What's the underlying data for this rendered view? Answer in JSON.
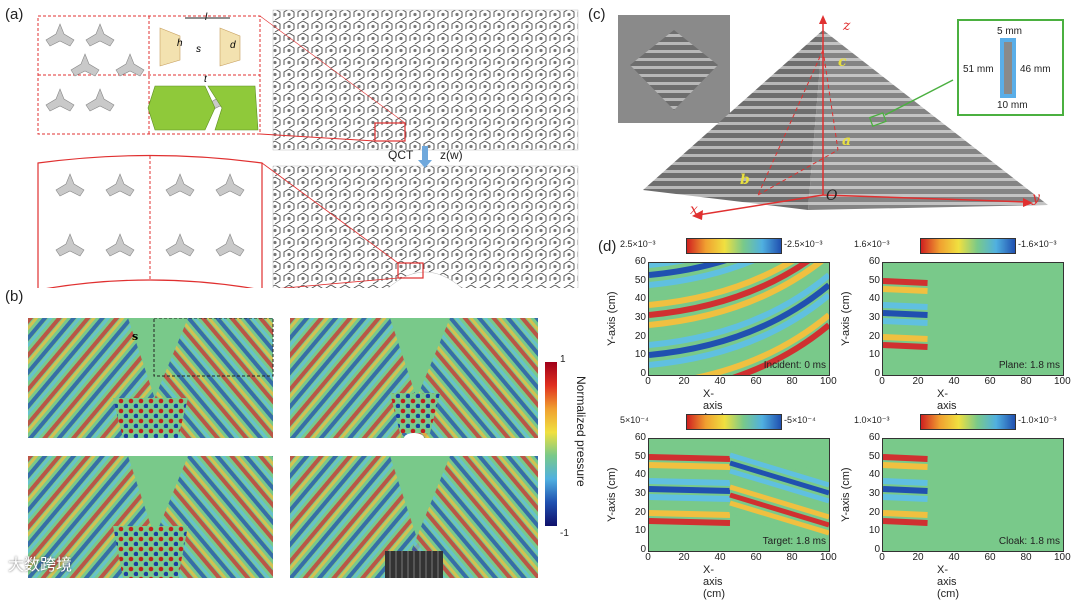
{
  "labels": {
    "a": "(a)",
    "b": "(b)",
    "c": "(c)",
    "d": "(d)"
  },
  "panel_a": {
    "params": [
      "l",
      "h",
      "s",
      "d",
      "t"
    ],
    "transform_label": "QCT",
    "transform_target": "z(w)"
  },
  "panel_b": {
    "region_label": "s",
    "colorbar_title": "Normalized pressure",
    "colorbar_max": "1",
    "colorbar_min": "-1"
  },
  "panel_c": {
    "axes": {
      "z": "z",
      "x": "x",
      "y": "y",
      "origin": "O"
    },
    "dims": {
      "a": "a",
      "b": "b",
      "c": "c"
    },
    "inset_dims": {
      "top": "5 mm",
      "left": "51 mm",
      "right": "46 mm",
      "bottom": "10 mm"
    }
  },
  "panel_d": {
    "plots": [
      {
        "cb_max": "2.5×10⁻³",
        "cb_min": "-2.5×10⁻³",
        "caption": "Incident: 0 ms",
        "xlabel": "X-axis (cm)",
        "ylabel": "Y-axis (cm)"
      },
      {
        "cb_max": "1.6×10⁻³",
        "cb_min": "-1.6×10⁻³",
        "caption": "Plane: 1.8 ms",
        "xlabel": "X-axis (cm)",
        "ylabel": "Y-axis (cm)"
      },
      {
        "cb_max": "5×10⁻⁴",
        "cb_min": "-5×10⁻⁴",
        "caption": "Target: 1.8 ms",
        "xlabel": "X-axis (cm)",
        "ylabel": "Y-axis (cm)"
      },
      {
        "cb_max": "1.0×10⁻³",
        "cb_min": "-1.0×10⁻³",
        "caption": "Cloak: 1.8 ms",
        "xlabel": "X-axis (cm)",
        "ylabel": "Y-axis (cm)"
      }
    ],
    "xticks": [
      "0",
      "20",
      "40",
      "60",
      "80",
      "100"
    ],
    "yticks": [
      "0",
      "10",
      "20",
      "30",
      "40",
      "50",
      "60"
    ]
  },
  "watermark": "大数跨境",
  "colors": {
    "accent_red": "#e03030",
    "green": "#8fc93a",
    "field_base": "#79c98a"
  }
}
